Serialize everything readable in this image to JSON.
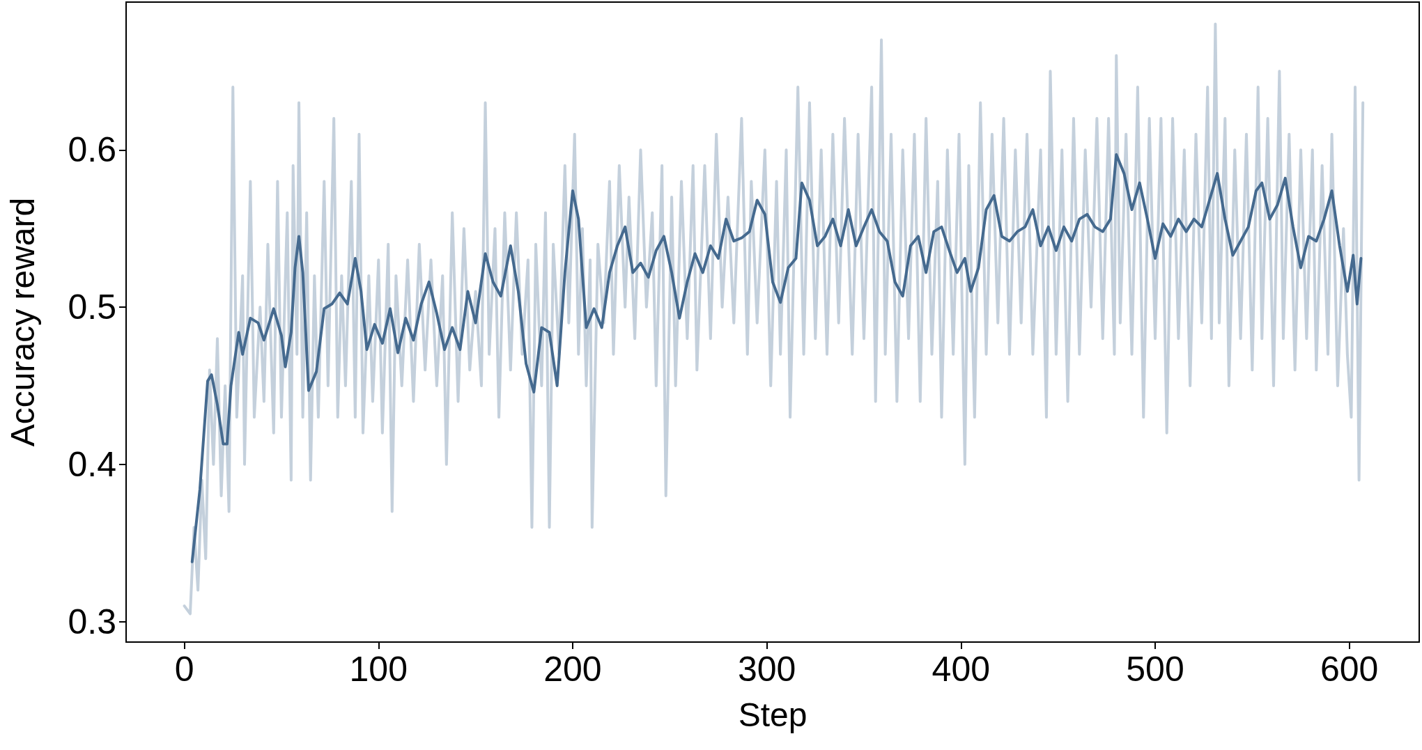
{
  "chart_data": {
    "type": "line",
    "xlabel": "Step",
    "ylabel": "Accuracy reward",
    "xlim": [
      -30,
      636
    ],
    "ylim": [
      0.287,
      0.694
    ],
    "xticks": [
      0,
      100,
      200,
      300,
      400,
      500,
      600
    ],
    "yticks": [
      0.3,
      0.4,
      0.5,
      0.6
    ],
    "grid": false,
    "marker": "none",
    "line_style": "solid",
    "series": [
      {
        "color": "#c4d0dc",
        "x": [
          0,
          3,
          5,
          7,
          9,
          11,
          13,
          15,
          17,
          19,
          21,
          23,
          25,
          27,
          30,
          31,
          34,
          36,
          39,
          41,
          43,
          46,
          48,
          50,
          53,
          55,
          56,
          58,
          59,
          61,
          63,
          65,
          67,
          69,
          72,
          74,
          77,
          79,
          81,
          83,
          86,
          88,
          90,
          92,
          95,
          97,
          100,
          102,
          105,
          107,
          109,
          112,
          115,
          118,
          121,
          124,
          127,
          130,
          133,
          135,
          138,
          141,
          144,
          147,
          150,
          153,
          155,
          157,
          160,
          162,
          165,
          168,
          171,
          174,
          177,
          179,
          181,
          184,
          186,
          188,
          190,
          193,
          196,
          198,
          201,
          203,
          205,
          207,
          209,
          210,
          213,
          216,
          219,
          221,
          224,
          227,
          229,
          232,
          235,
          238,
          241,
          243,
          246,
          248,
          251,
          253,
          256,
          259,
          262,
          264,
          268,
          271,
          274,
          277,
          280,
          283,
          287,
          290,
          292,
          295,
          299,
          302,
          305,
          307,
          310,
          312,
          316,
          319,
          322,
          325,
          328,
          331,
          334,
          337,
          340,
          344,
          347,
          350,
          354,
          356,
          359,
          361,
          364,
          367,
          370,
          373,
          376,
          379,
          382,
          385,
          388,
          390,
          393,
          396,
          399,
          402,
          404,
          407,
          410,
          413,
          416,
          419,
          422,
          425,
          428,
          431,
          434,
          437,
          441,
          444,
          446,
          449,
          452,
          455,
          458,
          461,
          464,
          467,
          470,
          473,
          476,
          479,
          480,
          482,
          485,
          488,
          491,
          494,
          497,
          500,
          503,
          506,
          509,
          512,
          515,
          518,
          521,
          524,
          527,
          529,
          531,
          533,
          536,
          538,
          541,
          544,
          547,
          550,
          553,
          555,
          558,
          561,
          564,
          566,
          569,
          572,
          575,
          578,
          581,
          583,
          586,
          589,
          591,
          594,
          597,
          599,
          601,
          603,
          605,
          607
        ],
        "values": [
          0.31,
          0.305,
          0.36,
          0.32,
          0.39,
          0.34,
          0.46,
          0.4,
          0.48,
          0.38,
          0.45,
          0.37,
          0.64,
          0.43,
          0.52,
          0.4,
          0.58,
          0.43,
          0.5,
          0.44,
          0.54,
          0.42,
          0.58,
          0.43,
          0.56,
          0.39,
          0.59,
          0.47,
          0.63,
          0.43,
          0.56,
          0.39,
          0.52,
          0.43,
          0.58,
          0.45,
          0.62,
          0.43,
          0.52,
          0.45,
          0.58,
          0.43,
          0.61,
          0.42,
          0.52,
          0.44,
          0.53,
          0.42,
          0.54,
          0.37,
          0.52,
          0.45,
          0.53,
          0.44,
          0.54,
          0.46,
          0.53,
          0.45,
          0.52,
          0.4,
          0.56,
          0.44,
          0.55,
          0.46,
          0.51,
          0.45,
          0.63,
          0.47,
          0.55,
          0.43,
          0.56,
          0.46,
          0.56,
          0.47,
          0.53,
          0.36,
          0.54,
          0.45,
          0.56,
          0.36,
          0.54,
          0.47,
          0.59,
          0.49,
          0.61,
          0.47,
          0.55,
          0.45,
          0.53,
          0.36,
          0.54,
          0.49,
          0.58,
          0.47,
          0.59,
          0.5,
          0.57,
          0.48,
          0.6,
          0.5,
          0.56,
          0.45,
          0.59,
          0.38,
          0.57,
          0.45,
          0.58,
          0.48,
          0.59,
          0.46,
          0.59,
          0.48,
          0.61,
          0.5,
          0.57,
          0.49,
          0.62,
          0.47,
          0.58,
          0.49,
          0.6,
          0.45,
          0.58,
          0.47,
          0.6,
          0.43,
          0.64,
          0.47,
          0.63,
          0.48,
          0.6,
          0.47,
          0.61,
          0.49,
          0.62,
          0.47,
          0.61,
          0.48,
          0.64,
          0.44,
          0.67,
          0.47,
          0.61,
          0.44,
          0.6,
          0.48,
          0.61,
          0.44,
          0.62,
          0.47,
          0.58,
          0.43,
          0.6,
          0.47,
          0.61,
          0.4,
          0.59,
          0.43,
          0.63,
          0.47,
          0.61,
          0.49,
          0.62,
          0.47,
          0.6,
          0.49,
          0.61,
          0.47,
          0.6,
          0.43,
          0.65,
          0.47,
          0.6,
          0.44,
          0.62,
          0.47,
          0.6,
          0.5,
          0.62,
          0.48,
          0.62,
          0.47,
          0.66,
          0.49,
          0.61,
          0.47,
          0.64,
          0.43,
          0.62,
          0.48,
          0.62,
          0.42,
          0.62,
          0.48,
          0.6,
          0.45,
          0.61,
          0.49,
          0.64,
          0.48,
          0.68,
          0.49,
          0.62,
          0.45,
          0.6,
          0.48,
          0.61,
          0.46,
          0.64,
          0.48,
          0.62,
          0.45,
          0.65,
          0.48,
          0.61,
          0.46,
          0.6,
          0.48,
          0.6,
          0.46,
          0.59,
          0.47,
          0.61,
          0.45,
          0.55,
          0.47,
          0.43,
          0.64,
          0.39,
          0.63
        ]
      },
      {
        "color": "#456a8f",
        "x": [
          4,
          8,
          12,
          14,
          17,
          20,
          22,
          24,
          28,
          30,
          34,
          38,
          41,
          46,
          50,
          52,
          55,
          57,
          59,
          61,
          64,
          68,
          72,
          76,
          80,
          84,
          88,
          91,
          94,
          98,
          102,
          106,
          110,
          114,
          118,
          122,
          126,
          130,
          134,
          138,
          142,
          146,
          150,
          155,
          159,
          163,
          168,
          172,
          176,
          180,
          184,
          188,
          192,
          196,
          200,
          203,
          207,
          211,
          215,
          219,
          223,
          227,
          231,
          235,
          239,
          243,
          247,
          251,
          255,
          259,
          263,
          267,
          271,
          275,
          279,
          283,
          287,
          291,
          295,
          299,
          303,
          307,
          311,
          315,
          318,
          322,
          326,
          330,
          334,
          338,
          342,
          346,
          350,
          354,
          358,
          362,
          366,
          370,
          374,
          378,
          382,
          386,
          390,
          394,
          398,
          402,
          405,
          409,
          413,
          417,
          421,
          425,
          429,
          433,
          437,
          441,
          445,
          449,
          453,
          457,
          461,
          465,
          469,
          473,
          477,
          480,
          484,
          488,
          492,
          496,
          500,
          504,
          508,
          512,
          516,
          520,
          524,
          528,
          532,
          536,
          540,
          544,
          548,
          552,
          555,
          559,
          563,
          567,
          571,
          575,
          579,
          583,
          587,
          591,
          595,
          599,
          602,
          604,
          606
        ],
        "values": [
          0.338,
          0.384,
          0.453,
          0.457,
          0.438,
          0.413,
          0.413,
          0.45,
          0.484,
          0.47,
          0.493,
          0.49,
          0.479,
          0.499,
          0.482,
          0.462,
          0.484,
          0.525,
          0.545,
          0.522,
          0.447,
          0.459,
          0.499,
          0.502,
          0.509,
          0.502,
          0.531,
          0.51,
          0.473,
          0.489,
          0.477,
          0.499,
          0.471,
          0.493,
          0.479,
          0.502,
          0.516,
          0.496,
          0.473,
          0.487,
          0.473,
          0.51,
          0.49,
          0.534,
          0.516,
          0.507,
          0.539,
          0.51,
          0.464,
          0.446,
          0.487,
          0.484,
          0.45,
          0.522,
          0.574,
          0.556,
          0.487,
          0.499,
          0.487,
          0.522,
          0.539,
          0.551,
          0.522,
          0.528,
          0.519,
          0.536,
          0.545,
          0.522,
          0.493,
          0.516,
          0.534,
          0.522,
          0.539,
          0.531,
          0.556,
          0.542,
          0.544,
          0.548,
          0.568,
          0.559,
          0.516,
          0.503,
          0.525,
          0.531,
          0.579,
          0.568,
          0.539,
          0.545,
          0.556,
          0.539,
          0.562,
          0.539,
          0.551,
          0.562,
          0.548,
          0.542,
          0.516,
          0.507,
          0.539,
          0.545,
          0.522,
          0.548,
          0.551,
          0.536,
          0.522,
          0.531,
          0.51,
          0.525,
          0.562,
          0.571,
          0.545,
          0.542,
          0.548,
          0.551,
          0.562,
          0.539,
          0.551,
          0.536,
          0.551,
          0.542,
          0.556,
          0.559,
          0.551,
          0.548,
          0.556,
          0.597,
          0.585,
          0.562,
          0.579,
          0.556,
          0.531,
          0.553,
          0.545,
          0.556,
          0.548,
          0.556,
          0.551,
          0.568,
          0.585,
          0.556,
          0.533,
          0.542,
          0.551,
          0.574,
          0.579,
          0.556,
          0.565,
          0.582,
          0.551,
          0.525,
          0.545,
          0.542,
          0.556,
          0.574,
          0.539,
          0.51,
          0.533,
          0.502,
          0.531
        ]
      }
    ]
  }
}
